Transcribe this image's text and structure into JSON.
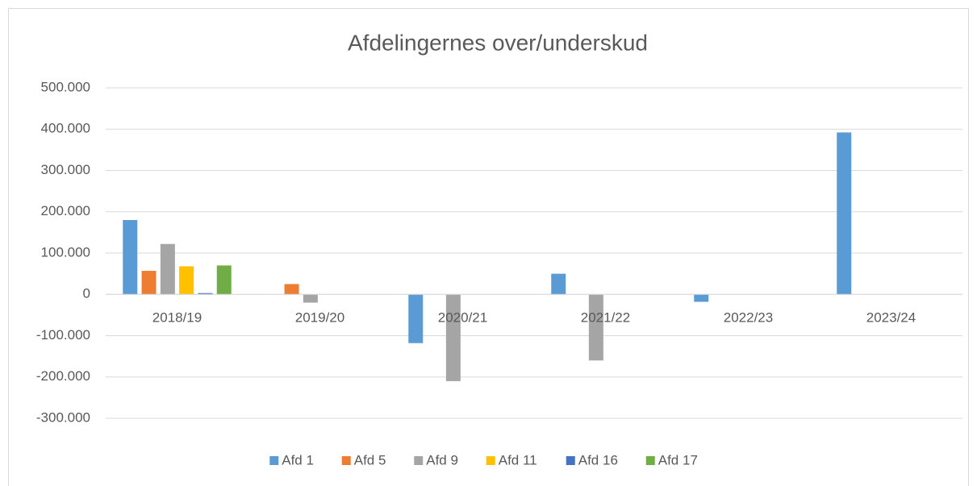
{
  "chart_data": {
    "type": "bar",
    "title": "Afdelingernes over/underskud",
    "categories": [
      "2018/19",
      "2019/20",
      "2020/21",
      "2021/22",
      "2022/23",
      "2023/24"
    ],
    "series": [
      {
        "name": "Afd 1",
        "color": "#5b9bd5",
        "values": [
          180000,
          null,
          -118000,
          50000,
          -18000,
          392000
        ]
      },
      {
        "name": "Afd 5",
        "color": "#ed7d31",
        "values": [
          57000,
          25000,
          null,
          null,
          null,
          null
        ]
      },
      {
        "name": "Afd 9",
        "color": "#a5a5a5",
        "values": [
          122000,
          -20000,
          -210000,
          -160000,
          null,
          null
        ]
      },
      {
        "name": "Afd 11",
        "color": "#ffc000",
        "values": [
          68000,
          null,
          null,
          null,
          null,
          null
        ]
      },
      {
        "name": "Afd 16",
        "color": "#4472c4",
        "values": [
          3000,
          null,
          null,
          null,
          null,
          null
        ]
      },
      {
        "name": "Afd 17",
        "color": "#70ad47",
        "values": [
          70000,
          null,
          null,
          null,
          null,
          null
        ]
      }
    ],
    "ylim": [
      -300000,
      500000
    ],
    "yticks": [
      {
        "value": -300000,
        "label": "-300.000"
      },
      {
        "value": -200000,
        "label": "-200.000"
      },
      {
        "value": -100000,
        "label": "-100.000"
      },
      0,
      {
        "value": 100000,
        "label": "100.000"
      },
      {
        "value": 200000,
        "label": "200.000"
      },
      {
        "value": 300000,
        "label": "300.000"
      },
      {
        "value": 400000,
        "label": "400.000"
      },
      {
        "value": 500000,
        "label": "500.000"
      }
    ],
    "grid": true,
    "legend": "bottom"
  }
}
